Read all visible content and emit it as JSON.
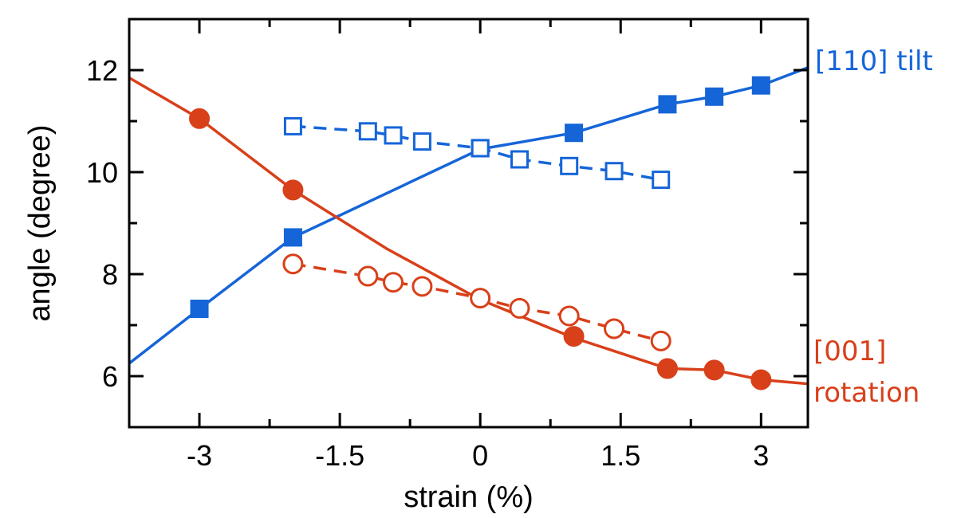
{
  "chart_data": {
    "type": "line",
    "title": "",
    "xlabel": "strain (%)",
    "ylabel": "angle (degree)",
    "xlim": [
      -3.75,
      3.5
    ],
    "ylim": [
      5,
      13
    ],
    "xticks": [
      -3,
      -1.5,
      0,
      1.5,
      3
    ],
    "xtick_labels": [
      "-3",
      "-1.5",
      "0",
      "1.5",
      "3"
    ],
    "yticks": [
      6,
      8,
      10,
      12
    ],
    "ytick_labels": [
      "6",
      "8",
      "10",
      "12"
    ],
    "grid": false,
    "series": [
      {
        "name": "[110] tilt",
        "label_lines": [
          "[110] tilt"
        ],
        "color": "#1565d8",
        "marker": "square",
        "filled": true,
        "dashed": false,
        "line_x": [
          -3.75,
          -3,
          -2,
          0,
          1,
          2,
          2.5,
          3,
          3.5
        ],
        "line_y": [
          6.25,
          7.32,
          8.72,
          10.45,
          10.77,
          11.33,
          11.48,
          11.7,
          12.05
        ],
        "x": [
          -3,
          -2,
          0,
          1,
          2,
          2.5,
          3
        ],
        "y": [
          7.32,
          8.72,
          10.47,
          10.77,
          11.33,
          11.48,
          11.7
        ]
      },
      {
        "name": "[110] tilt (open)",
        "label_lines": [],
        "color": "#1565d8",
        "marker": "square",
        "filled": false,
        "dashed": true,
        "line_x": [
          -2,
          -1.2,
          -0.93,
          -0.62,
          0,
          0.42,
          0.95,
          1.43,
          1.93
        ],
        "line_y": [
          10.9,
          10.8,
          10.72,
          10.6,
          10.47,
          10.25,
          10.12,
          10.02,
          9.85
        ],
        "x": [
          -2,
          -1.2,
          -0.93,
          -0.62,
          0,
          0.42,
          0.95,
          1.43,
          1.93
        ],
        "y": [
          10.9,
          10.8,
          10.72,
          10.6,
          10.47,
          10.25,
          10.12,
          10.02,
          9.85
        ]
      },
      {
        "name": "[001] rotation",
        "label_lines": [
          "[001]",
          "rotation"
        ],
        "color": "#d8401a",
        "marker": "circle",
        "filled": true,
        "dashed": false,
        "line_x": [
          -3.75,
          -3,
          -2,
          -1,
          0,
          1,
          2,
          2.5,
          3,
          3.5
        ],
        "line_y": [
          11.85,
          11.05,
          9.65,
          8.5,
          7.5,
          6.75,
          6.15,
          6.12,
          5.93,
          5.85
        ],
        "x": [
          -3,
          -2,
          1,
          2,
          2.5,
          3
        ],
        "y": [
          11.05,
          9.65,
          6.78,
          6.15,
          6.12,
          5.93
        ]
      },
      {
        "name": "[001] rotation (open)",
        "label_lines": [],
        "color": "#d8401a",
        "marker": "circle",
        "filled": false,
        "dashed": true,
        "line_x": [
          -2,
          -1.2,
          -0.93,
          -0.62,
          0,
          0.42,
          0.95,
          1.43,
          1.93
        ],
        "line_y": [
          8.2,
          7.96,
          7.84,
          7.76,
          7.53,
          7.33,
          7.18,
          6.93,
          6.69
        ],
        "x": [
          -2,
          -1.2,
          -0.93,
          -0.62,
          0,
          0.42,
          0.95,
          1.43,
          1.93
        ],
        "y": [
          8.2,
          7.96,
          7.84,
          7.76,
          7.53,
          7.33,
          7.18,
          6.93,
          6.69
        ]
      }
    ]
  }
}
